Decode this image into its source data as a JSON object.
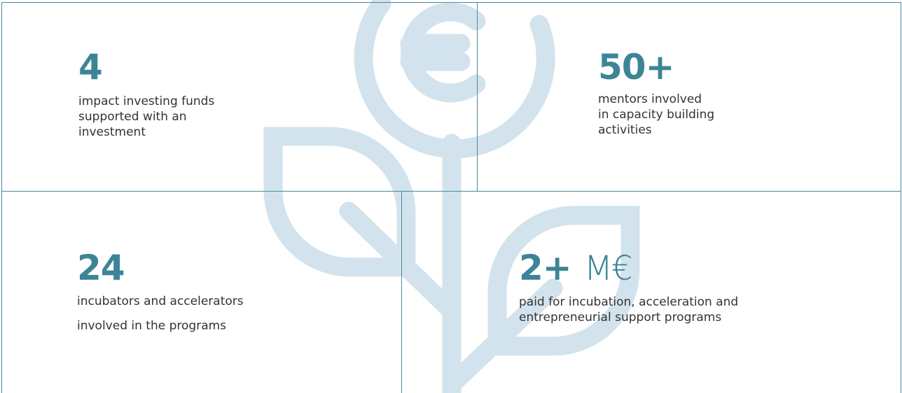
{
  "stats": [
    {
      "value": "4",
      "description": [
        "impact investing funds",
        "supported with an",
        "investment"
      ]
    },
    {
      "value": "50+",
      "description": [
        "mentors involved",
        "in capacity building",
        "activities"
      ]
    },
    {
      "value": "24",
      "description": [
        "incubators and accelerators",
        "involved in the programs"
      ]
    },
    {
      "value": "2+",
      "unit": "M€",
      "description": [
        "paid for incubation, acceleration and",
        "entrepreneurial support programs"
      ]
    }
  ]
}
